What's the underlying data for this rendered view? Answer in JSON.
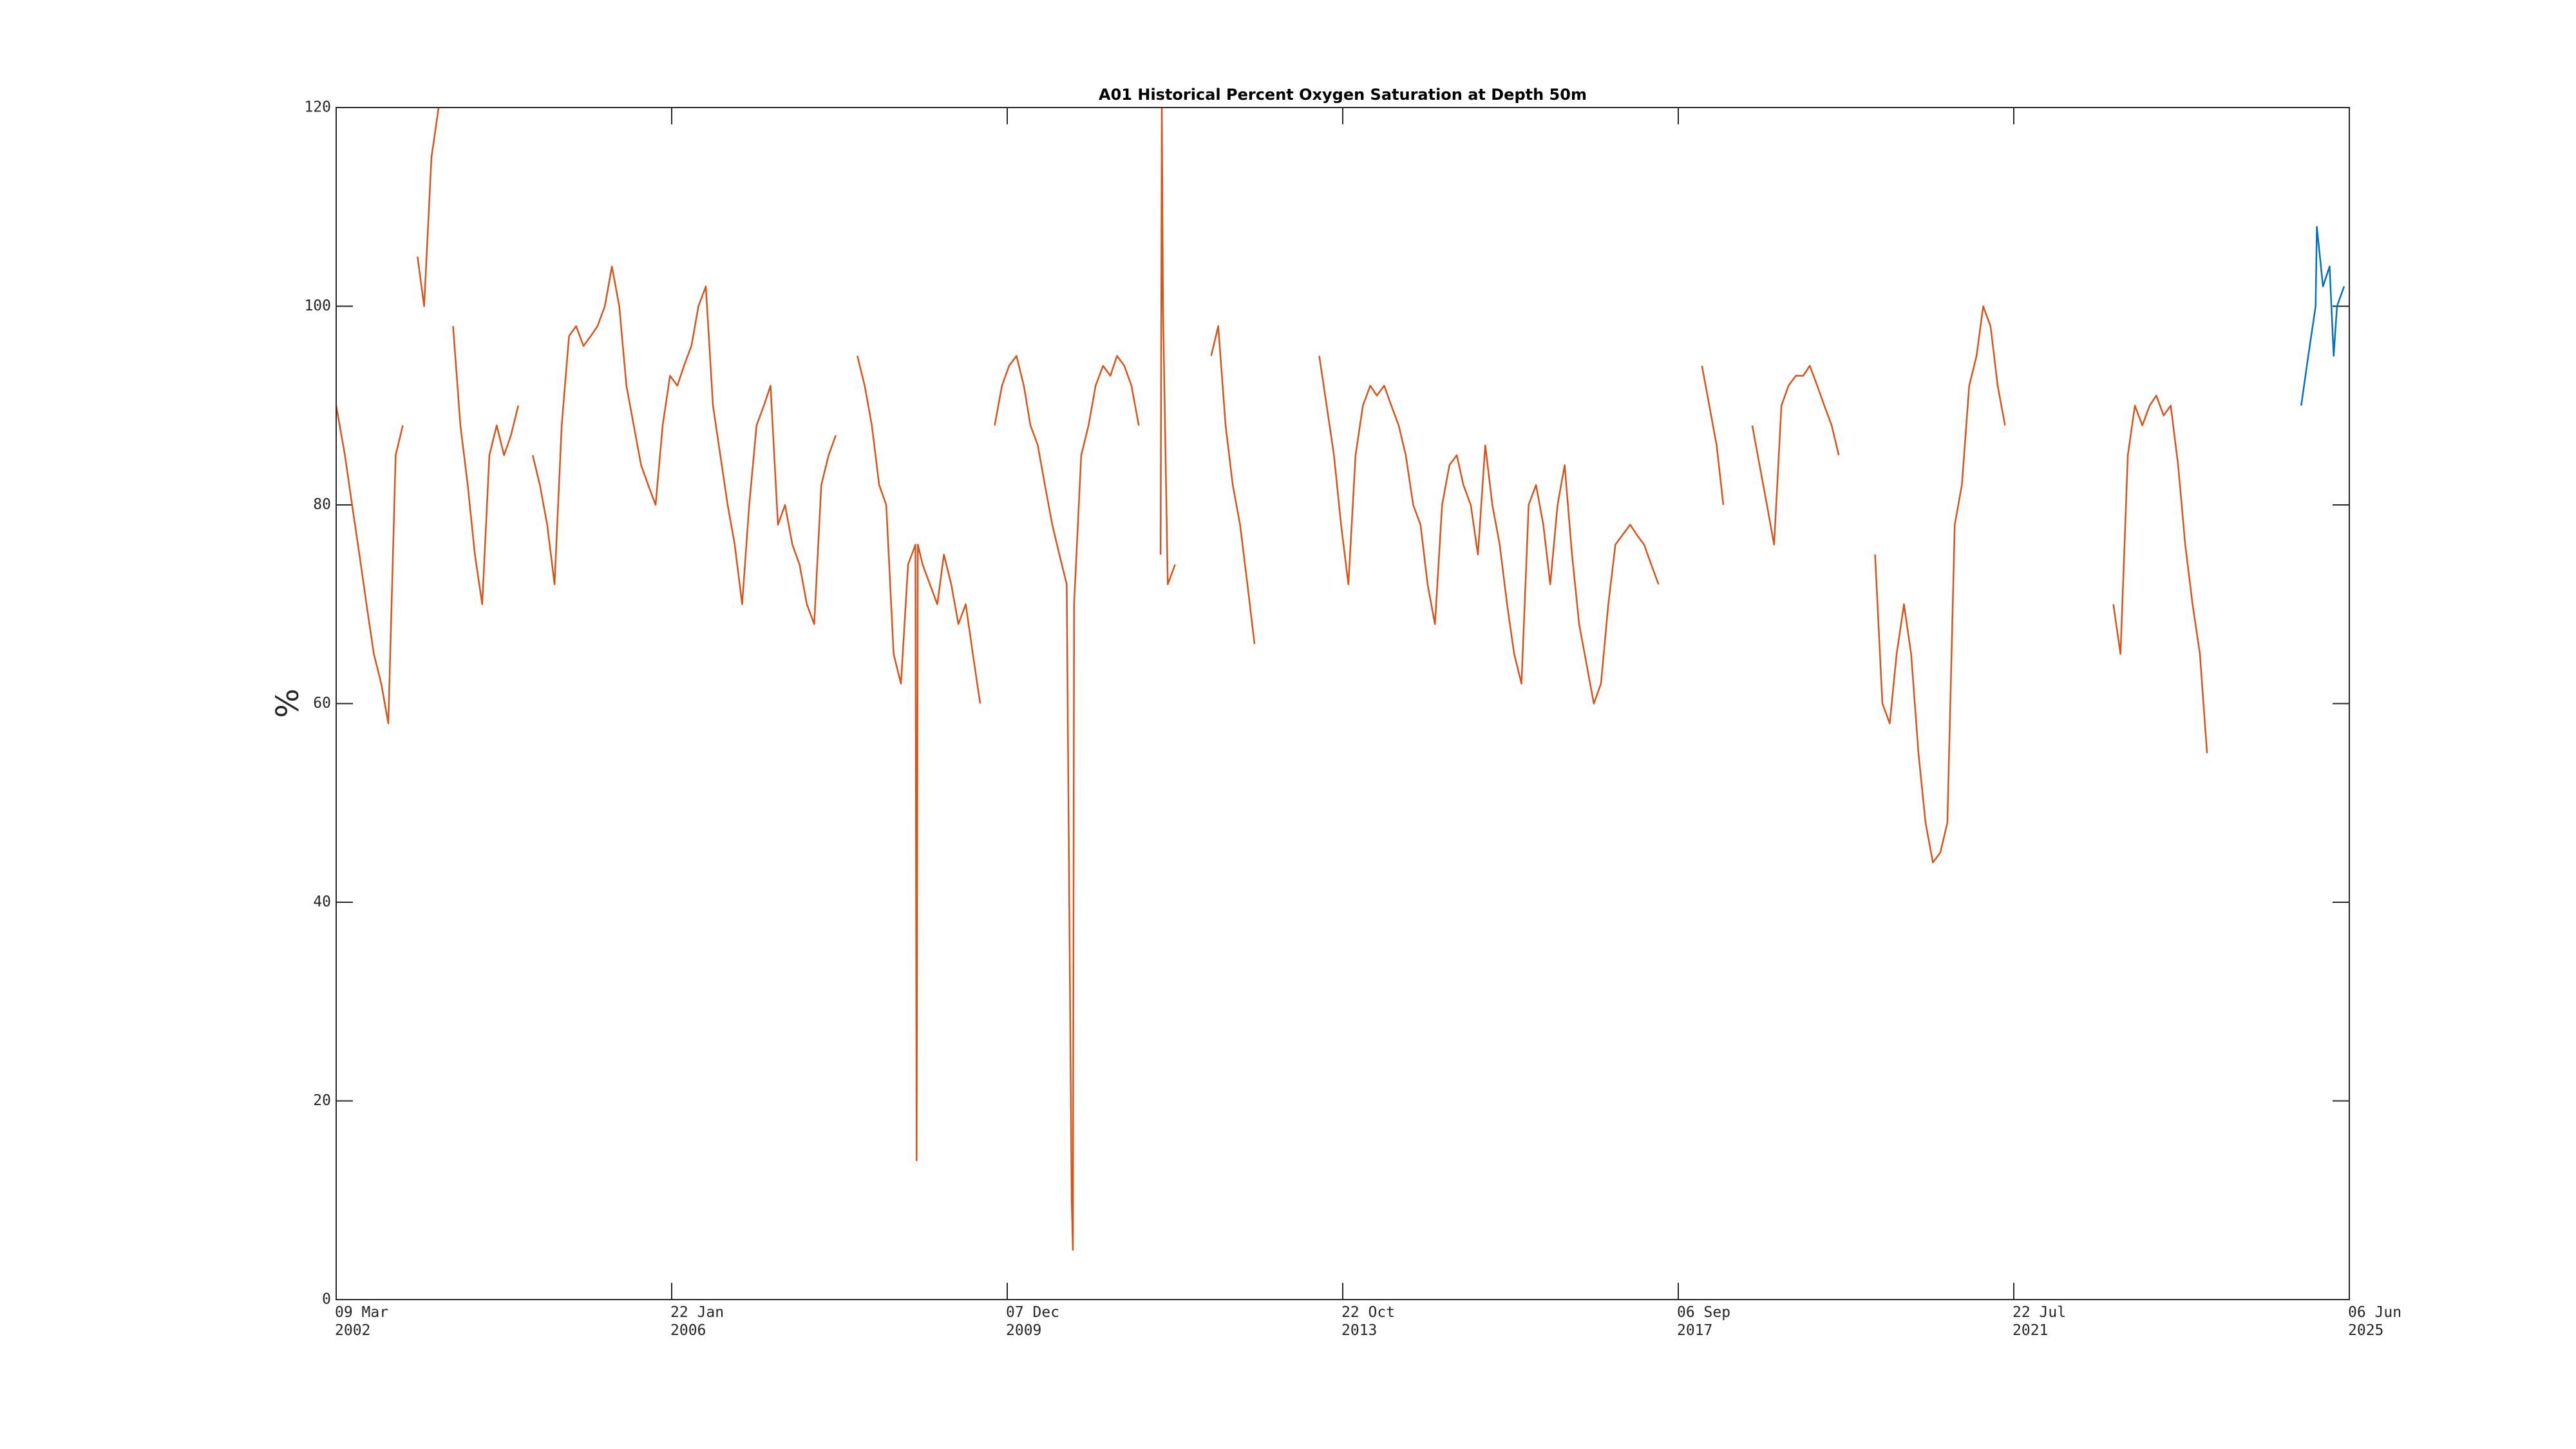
{
  "chart_data": {
    "type": "line",
    "title": "A01 Historical Percent Oxygen Saturation at Depth 50m",
    "ylabel": "%",
    "xlim": [
      "2002-03-09",
      "2025-06-06"
    ],
    "xticks": [
      {
        "value": "2002-03-09",
        "label": "09 Mar\n2002"
      },
      {
        "value": "2006-01-22",
        "label": "22 Jan\n2006"
      },
      {
        "value": "2009-12-07",
        "label": "07 Dec\n2009"
      },
      {
        "value": "2013-10-22",
        "label": "22 Oct\n2013"
      },
      {
        "value": "2017-09-06",
        "label": "06 Sep\n2017"
      },
      {
        "value": "2021-07-22",
        "label": "22 Jul\n2021"
      },
      {
        "value": "2025-06-06",
        "label": "06 Jun\n2025"
      }
    ],
    "ylim": [
      0,
      120
    ],
    "yticks": [
      0,
      20,
      40,
      60,
      80,
      100,
      120
    ],
    "grid": false,
    "series": [
      {
        "color": "#d95319",
        "x": [
          "2002-03-09",
          "2002-04-15",
          "2002-05-15",
          "2002-06-15",
          "2002-07-15",
          "2002-08-15",
          "2002-09-15",
          "2002-10-15",
          "2002-11-15",
          "2002-12-15",
          "2003-01-15",
          "2003-02-15",
          "2003-03-15",
          "2003-04-15",
          "2003-05-15",
          "2003-06-15",
          "2003-07-15",
          "2003-08-15",
          "2003-09-15",
          "2003-10-15",
          "2003-11-15",
          "2003-12-15",
          "2004-01-15",
          "2004-02-15",
          "2004-03-15",
          "2004-04-15",
          "2004-05-15",
          "2004-06-15",
          "2004-07-15",
          "2004-08-15",
          "2004-09-15",
          "2004-10-15",
          "2004-11-15",
          "2004-12-15",
          "2005-01-15",
          "2005-02-15",
          "2005-03-15",
          "2005-04-15",
          "2005-05-15",
          "2005-06-15",
          "2005-07-15",
          "2005-08-15",
          "2005-09-15",
          "2005-10-15",
          "2005-11-15",
          "2005-12-15",
          "2006-01-15",
          "2006-02-15",
          "2006-03-15",
          "2006-04-15",
          "2006-05-15",
          "2006-06-15",
          "2006-07-15",
          "2006-08-15",
          "2006-09-15",
          "2006-10-15",
          "2006-11-15",
          "2006-12-15",
          "2007-01-15",
          "2007-02-15",
          "2007-03-15",
          "2007-04-15",
          "2007-05-15",
          "2007-06-15",
          "2007-07-15",
          "2007-08-15",
          "2007-09-15",
          "2007-10-15",
          "2007-11-15",
          "2007-12-15",
          "2008-01-15",
          "2008-03-15",
          "2008-04-15",
          "2008-05-15",
          "2008-06-15",
          "2008-07-15",
          "2008-08-15",
          "2008-09-15",
          "2008-10-15",
          "2008-11-15",
          "2008-11-20",
          "2008-11-25",
          "2008-12-15",
          "2009-01-15",
          "2009-02-15",
          "2009-03-15",
          "2009-04-15",
          "2009-05-15",
          "2009-06-15",
          "2009-07-15",
          "2009-08-15",
          "2009-09-15",
          "2009-10-15",
          "2009-11-15",
          "2009-12-15",
          "2010-01-15",
          "2010-02-15",
          "2010-03-15",
          "2010-04-15",
          "2010-05-15",
          "2010-06-15",
          "2010-07-15",
          "2010-08-15",
          "2010-09-05",
          "2010-09-10",
          "2010-09-15",
          "2010-10-15",
          "2010-11-15",
          "2010-12-15",
          "2011-01-15",
          "2011-02-15",
          "2011-03-15",
          "2011-04-15",
          "2011-05-15",
          "2011-06-15",
          "2011-07-15",
          "2011-09-15",
          "2011-09-20",
          "2011-09-25",
          "2011-10-15",
          "2011-11-15",
          "2011-12-15",
          "2012-04-15",
          "2012-05-15",
          "2012-06-15",
          "2012-07-15",
          "2012-08-15",
          "2012-09-15",
          "2012-10-15",
          "2012-11-15",
          "2013-07-15",
          "2013-08-15",
          "2013-09-15",
          "2013-10-15",
          "2013-11-15",
          "2013-12-15",
          "2014-01-15",
          "2014-02-15",
          "2014-03-15",
          "2014-04-15",
          "2014-05-15",
          "2014-06-15",
          "2014-07-15",
          "2014-08-15",
          "2014-09-15",
          "2014-10-15",
          "2014-11-15",
          "2014-12-15",
          "2015-01-15",
          "2015-02-15",
          "2015-03-15",
          "2015-04-15",
          "2015-05-15",
          "2015-06-15",
          "2015-07-15",
          "2015-08-15",
          "2015-09-15",
          "2015-10-15",
          "2015-11-15",
          "2015-12-15",
          "2016-01-15",
          "2016-02-15",
          "2016-03-15",
          "2016-04-15",
          "2016-05-15",
          "2016-06-15",
          "2016-07-15",
          "2016-08-15",
          "2016-09-15",
          "2016-10-15",
          "2016-11-15",
          "2016-12-15",
          "2017-01-15",
          "2017-02-15",
          "2017-03-15",
          "2017-04-15",
          "2017-05-15",
          "2017-06-15",
          "2017-07-15",
          "2017-12-15",
          "2018-01-15",
          "2018-02-15",
          "2018-03-15",
          "2018-04-15",
          "2018-07-15",
          "2018-08-15",
          "2018-09-15",
          "2018-10-15",
          "2018-11-15",
          "2018-12-15",
          "2019-01-15",
          "2019-02-15",
          "2019-03-15",
          "2019-04-15",
          "2019-05-15",
          "2019-06-15",
          "2019-07-15",
          "2019-08-15",
          "2019-12-15",
          "2020-01-15",
          "2020-02-15",
          "2020-03-15",
          "2020-04-15",
          "2020-05-15",
          "2020-06-15",
          "2020-07-15",
          "2020-08-15",
          "2020-09-15",
          "2020-10-15",
          "2020-11-15",
          "2020-12-15",
          "2021-01-15",
          "2021-02-15",
          "2021-03-15",
          "2021-04-15",
          "2021-05-15",
          "2021-06-15",
          "2021-07-15",
          "2022-09-15",
          "2022-10-15",
          "2022-11-15",
          "2022-12-15",
          "2023-01-15",
          "2023-02-15",
          "2023-03-15",
          "2023-04-15",
          "2023-05-15",
          "2023-06-15",
          "2023-07-15",
          "2023-08-15",
          "2023-09-15",
          "2023-10-15"
        ],
        "values": [
          90,
          85,
          80,
          75,
          70,
          65,
          62,
          58,
          85,
          88,
          null,
          105,
          100,
          115,
          120,
          null,
          98,
          88,
          82,
          75,
          70,
          85,
          88,
          85,
          87,
          90,
          null,
          85,
          82,
          78,
          72,
          88,
          97,
          98,
          96,
          97,
          98,
          100,
          104,
          100,
          92,
          88,
          84,
          82,
          80,
          88,
          93,
          92,
          94,
          96,
          100,
          102,
          90,
          85,
          80,
          76,
          70,
          80,
          88,
          90,
          92,
          78,
          80,
          76,
          74,
          70,
          68,
          82,
          85,
          87,
          null,
          95,
          92,
          88,
          82,
          80,
          65,
          62,
          74,
          76,
          14,
          76,
          74,
          72,
          70,
          75,
          72,
          68,
          70,
          65,
          60,
          null,
          88,
          92,
          94,
          95,
          92,
          88,
          86,
          82,
          78,
          75,
          72,
          10,
          5,
          70,
          85,
          88,
          92,
          94,
          93,
          95,
          94,
          92,
          88,
          null,
          75,
          120,
          100,
          72,
          74,
          null,
          95,
          98,
          88,
          82,
          78,
          72,
          66,
          null,
          95,
          90,
          85,
          78,
          72,
          85,
          90,
          92,
          91,
          92,
          90,
          88,
          85,
          80,
          78,
          72,
          68,
          80,
          84,
          85,
          82,
          80,
          75,
          86,
          80,
          76,
          70,
          65,
          62,
          80,
          82,
          78,
          72,
          80,
          84,
          75,
          68,
          64,
          60,
          62,
          70,
          76,
          77,
          78,
          77,
          76,
          74,
          72,
          null,
          94,
          90,
          86,
          80,
          null,
          88,
          84,
          80,
          76,
          90,
          92,
          93,
          93,
          94,
          92,
          90,
          88,
          85,
          null,
          75,
          60,
          58,
          65,
          70,
          65,
          55,
          48,
          44,
          45,
          48,
          78,
          82,
          92,
          95,
          100,
          98,
          92,
          88,
          null,
          70,
          65,
          85,
          90,
          88,
          90,
          91,
          89,
          90,
          84,
          76,
          70,
          65,
          55
        ]
      },
      {
        "color": "#0072bd",
        "x": [
          "2024-11-15",
          "2024-12-15",
          "2025-01-15",
          "2025-01-20",
          "2025-02-15",
          "2025-03-15",
          "2025-04-01",
          "2025-04-15",
          "2025-05-15"
        ],
        "values": [
          90,
          95,
          100,
          108,
          102,
          104,
          95,
          100,
          102
        ]
      }
    ]
  }
}
